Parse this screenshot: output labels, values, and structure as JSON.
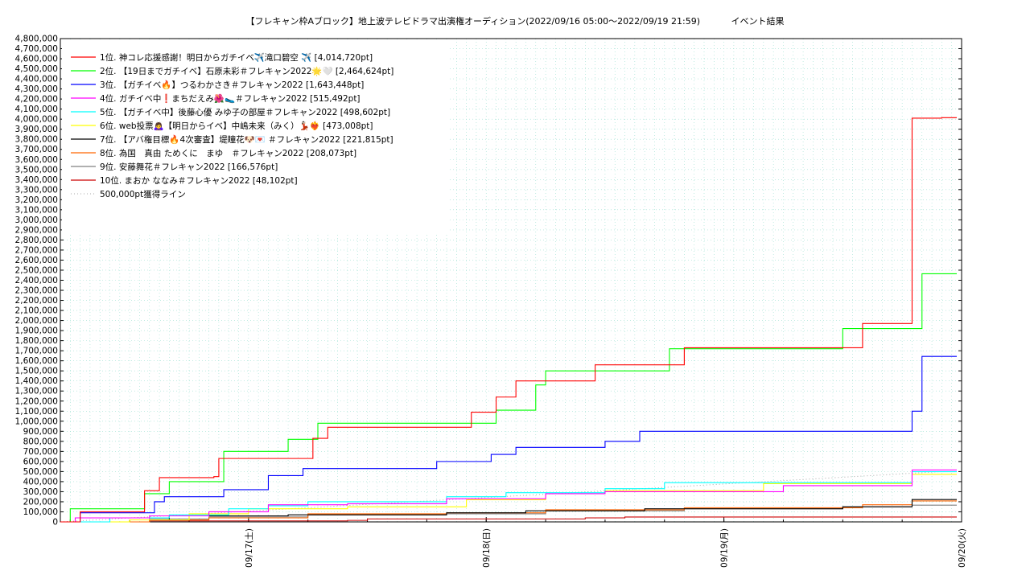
{
  "chart_data": {
    "type": "line",
    "title": "【フレキャン枠Aブロック】地上波テレビドラマ出演権オーディション(2022/09/16 05:00～2022/09/19 21:59)",
    "subtitle": "イベント結果",
    "xlabel": "",
    "ylabel": "",
    "ylim": [
      0,
      4800000
    ],
    "ytick_step": 100000,
    "x_start": "2022/09/16 05:00",
    "x_end": "2022/09/20 00:00",
    "x_ticks": [
      "09/17(土)",
      "09/18(日)",
      "09/19(月)",
      "09/20(火)"
    ],
    "x_tick_times": [
      "2022/09/17 00:00",
      "2022/09/18 00:00",
      "2022/09/19 00:00",
      "2022/09/20 00:00"
    ],
    "grid": true,
    "legend_position": "top-left",
    "series": [
      {
        "name": "1位. 神コレ応援感謝！明日からガチイベ✈️滝口碧空 ✈️ [4,014,720pt]",
        "color": "#ff0000",
        "points": [
          [
            "2022/09/16 05:00",
            0
          ],
          [
            "2022/09/16 06:30",
            0
          ],
          [
            "2022/09/16 07:00",
            100000
          ],
          [
            "2022/09/16 13:00",
            100000
          ],
          [
            "2022/09/16 13:30",
            310000
          ],
          [
            "2022/09/16 14:30",
            310000
          ],
          [
            "2022/09/16 15:00",
            440000
          ],
          [
            "2022/09/16 20:30",
            450000
          ],
          [
            "2022/09/16 21:00",
            630000
          ],
          [
            "2022/09/17 05:30",
            630000
          ],
          [
            "2022/09/17 06:30",
            830000
          ],
          [
            "2022/09/17 07:00",
            830000
          ],
          [
            "2022/09/17 08:00",
            940000
          ],
          [
            "2022/09/17 22:00",
            940000
          ],
          [
            "2022/09/17 22:30",
            1090000
          ],
          [
            "2022/09/17 23:30",
            1090000
          ],
          [
            "2022/09/18 01:00",
            1240000
          ],
          [
            "2022/09/18 02:30",
            1240000
          ],
          [
            "2022/09/18 03:00",
            1400000
          ],
          [
            "2022/09/18 10:30",
            1400000
          ],
          [
            "2022/09/18 11:00",
            1560000
          ],
          [
            "2022/09/18 19:30",
            1560000
          ],
          [
            "2022/09/18 20:00",
            1730000
          ],
          [
            "2022/09/19 13:00",
            1730000
          ],
          [
            "2022/09/19 14:00",
            1970000
          ],
          [
            "2022/09/19 19:00",
            4010000
          ],
          [
            "2022/09/19 21:59",
            4014720
          ]
        ]
      },
      {
        "name": "2位. 【19日までガチイベ】石原未彩＃フレキャン2022🌟🤍 [2,464,624pt]",
        "color": "#00ff00",
        "points": [
          [
            "2022/09/16 05:00",
            0
          ],
          [
            "2022/09/16 05:30",
            0
          ],
          [
            "2022/09/16 06:00",
            130000
          ],
          [
            "2022/09/16 13:00",
            130000
          ],
          [
            "2022/09/16 13:30",
            280000
          ],
          [
            "2022/09/16 16:00",
            400000
          ],
          [
            "2022/09/16 21:00",
            400000
          ],
          [
            "2022/09/16 21:30",
            700000
          ],
          [
            "2022/09/17 03:30",
            700000
          ],
          [
            "2022/09/17 04:00",
            820000
          ],
          [
            "2022/09/17 06:00",
            820000
          ],
          [
            "2022/09/17 07:00",
            980000
          ],
          [
            "2022/09/17 21:30",
            980000
          ],
          [
            "2022/09/18 01:00",
            1110000
          ],
          [
            "2022/09/18 04:00",
            1110000
          ],
          [
            "2022/09/18 05:00",
            1360000
          ],
          [
            "2022/09/18 06:00",
            1500000
          ],
          [
            "2022/09/18 18:00",
            1500000
          ],
          [
            "2022/09/18 18:30",
            1720000
          ],
          [
            "2022/09/19 12:00",
            1920000
          ],
          [
            "2022/09/19 20:00",
            2464624
          ],
          [
            "2022/09/19 21:59",
            2464624
          ]
        ]
      },
      {
        "name": "3位. 【ガチイベ🔥】つるわかさき＃フレキャン2022 [1,643,448pt]",
        "color": "#0000ff",
        "points": [
          [
            "2022/09/16 05:00",
            0
          ],
          [
            "2022/09/16 06:30",
            0
          ],
          [
            "2022/09/16 07:00",
            90000
          ],
          [
            "2022/09/16 14:00",
            90000
          ],
          [
            "2022/09/16 14:30",
            200000
          ],
          [
            "2022/09/16 15:30",
            250000
          ],
          [
            "2022/09/16 21:00",
            250000
          ],
          [
            "2022/09/16 21:30",
            320000
          ],
          [
            "2022/09/17 00:00",
            320000
          ],
          [
            "2022/09/17 02:00",
            460000
          ],
          [
            "2022/09/17 04:00",
            460000
          ],
          [
            "2022/09/17 05:30",
            530000
          ],
          [
            "2022/09/17 18:30",
            530000
          ],
          [
            "2022/09/17 19:00",
            600000
          ],
          [
            "2022/09/18 00:00",
            600000
          ],
          [
            "2022/09/18 00:30",
            670000
          ],
          [
            "2022/09/18 02:00",
            670000
          ],
          [
            "2022/09/18 03:00",
            740000
          ],
          [
            "2022/09/18 11:30",
            740000
          ],
          [
            "2022/09/18 12:00",
            800000
          ],
          [
            "2022/09/18 15:00",
            800000
          ],
          [
            "2022/09/18 15:30",
            900000
          ],
          [
            "2022/09/19 14:00",
            900000
          ],
          [
            "2022/09/19 19:00",
            1100000
          ],
          [
            "2022/09/19 20:00",
            1643448
          ],
          [
            "2022/09/19 21:59",
            1643448
          ]
        ]
      },
      {
        "name": "4位. ガチイベ中❗まちだえみ🌺🥿＃フレキャン2022 [515,492pt]",
        "color": "#ff00ff",
        "points": [
          [
            "2022/09/16 05:00",
            0
          ],
          [
            "2022/09/16 06:30",
            40000
          ],
          [
            "2022/09/16 14:00",
            60000
          ],
          [
            "2022/09/16 20:00",
            100000
          ],
          [
            "2022/09/17 02:00",
            170000
          ],
          [
            "2022/09/17 10:00",
            180000
          ],
          [
            "2022/09/17 20:00",
            230000
          ],
          [
            "2022/09/18 06:00",
            280000
          ],
          [
            "2022/09/18 12:00",
            300000
          ],
          [
            "2022/09/19 06:00",
            360000
          ],
          [
            "2022/09/19 19:00",
            515492
          ],
          [
            "2022/09/19 21:59",
            515492
          ]
        ]
      },
      {
        "name": "5位. 【ガチイベ中】後藤心優 みゆ子の部屋＃フレキャン2022 [498,602pt]",
        "color": "#00ffff",
        "points": [
          [
            "2022/09/16 05:00",
            0
          ],
          [
            "2022/09/16 10:00",
            40000
          ],
          [
            "2022/09/16 16:00",
            70000
          ],
          [
            "2022/09/16 22:00",
            130000
          ],
          [
            "2022/09/17 02:00",
            160000
          ],
          [
            "2022/09/17 06:00",
            200000
          ],
          [
            "2022/09/17 20:00",
            250000
          ],
          [
            "2022/09/18 02:00",
            290000
          ],
          [
            "2022/09/18 12:00",
            330000
          ],
          [
            "2022/09/18 18:00",
            390000
          ],
          [
            "2022/09/19 19:00",
            498602
          ],
          [
            "2022/09/19 21:59",
            498602
          ]
        ]
      },
      {
        "name": "6位. web投票🙇‍♀️【明日からイベ】中嶋未来（みく）💃🏻❤️‍🔥 [473,008pt]",
        "color": "#ffff00",
        "points": [
          [
            "2022/09/16 05:00",
            0
          ],
          [
            "2022/09/16 12:00",
            20000
          ],
          [
            "2022/09/16 18:00",
            80000
          ],
          [
            "2022/09/17 00:00",
            130000
          ],
          [
            "2022/09/17 10:00",
            150000
          ],
          [
            "2022/09/17 22:00",
            220000
          ],
          [
            "2022/09/18 06:00",
            280000
          ],
          [
            "2022/09/18 12:00",
            310000
          ],
          [
            "2022/09/19 04:00",
            380000
          ],
          [
            "2022/09/19 19:00",
            473008
          ],
          [
            "2022/09/19 21:59",
            473008
          ]
        ]
      },
      {
        "name": "7位. 【アバ権目標🔥4次審査】堤瞳花🐶💌 ＃フレキャン2022 [221,815pt]",
        "color": "#000000",
        "points": [
          [
            "2022/09/16 05:00",
            0
          ],
          [
            "2022/09/16 12:00",
            20000
          ],
          [
            "2022/09/16 16:00",
            60000
          ],
          [
            "2022/09/17 04:00",
            70000
          ],
          [
            "2022/09/17 20:00",
            90000
          ],
          [
            "2022/09/18 04:00",
            110000
          ],
          [
            "2022/09/18 16:00",
            130000
          ],
          [
            "2022/09/19 12:00",
            150000
          ],
          [
            "2022/09/19 19:00",
            221815
          ],
          [
            "2022/09/19 21:59",
            221815
          ]
        ]
      },
      {
        "name": "8位. 為国　真由 ためくに　まゆ　＃フレキャン2022 [208,073pt]",
        "color": "#ff6600",
        "points": [
          [
            "2022/09/16 05:00",
            0
          ],
          [
            "2022/09/16 14:00",
            20000
          ],
          [
            "2022/09/16 20:00",
            40000
          ],
          [
            "2022/09/17 06:00",
            80000
          ],
          [
            "2022/09/17 20:00",
            90000
          ],
          [
            "2022/09/18 06:00",
            120000
          ],
          [
            "2022/09/18 20:00",
            140000
          ],
          [
            "2022/09/19 14:00",
            170000
          ],
          [
            "2022/09/19 19:00",
            208073
          ],
          [
            "2022/09/19 21:59",
            208073
          ]
        ]
      },
      {
        "name": "9位. 安藤舞花＃フレキャン2022 [166,576pt]",
        "color": "#808080",
        "points": [
          [
            "2022/09/16 05:00",
            0
          ],
          [
            "2022/09/16 14:00",
            30000
          ],
          [
            "2022/09/16 20:00",
            50000
          ],
          [
            "2022/09/17 06:00",
            70000
          ],
          [
            "2022/09/17 20:00",
            80000
          ],
          [
            "2022/09/18 06:00",
            110000
          ],
          [
            "2022/09/18 20:00",
            130000
          ],
          [
            "2022/09/19 12:00",
            150000
          ],
          [
            "2022/09/19 19:00",
            166576
          ],
          [
            "2022/09/19 21:59",
            166576
          ]
        ]
      },
      {
        "name": "10位. まおか ななみ＃フレキャン2022 [48,102pt]",
        "color": "#cc0000",
        "points": [
          [
            "2022/09/16 05:00",
            0
          ],
          [
            "2022/09/16 14:00",
            10000
          ],
          [
            "2022/09/17 10:00",
            15000
          ],
          [
            "2022/09/17 12:00",
            30000
          ],
          [
            "2022/09/18 10:00",
            40000
          ],
          [
            "2022/09/18 14:00",
            48102
          ],
          [
            "2022/09/19 21:59",
            48102
          ]
        ]
      }
    ],
    "reference_line": {
      "name": "500,000pt獲得ライン",
      "value": 500000,
      "color": "#aaaaaa"
    }
  }
}
